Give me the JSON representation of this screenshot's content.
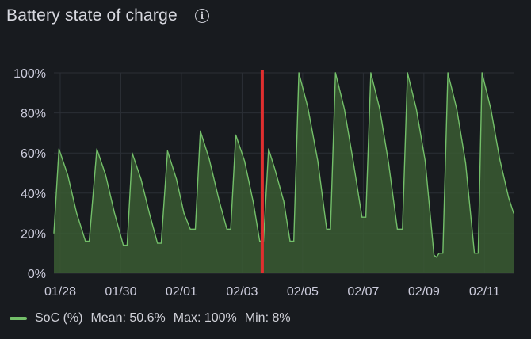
{
  "panel": {
    "title": "Battery state of charge",
    "info_icon": "info-icon"
  },
  "colors": {
    "background": "#181b1f",
    "series_line": "#73bf69",
    "series_fill": "#3a5a32",
    "grid": "#2b2f36",
    "marker": "#e02f2f"
  },
  "legend": {
    "series_name": "SoC (%)",
    "mean": "Mean: 50.6%",
    "max": "Max: 100%",
    "min": "Min: 8%"
  },
  "chart_data": {
    "type": "area",
    "title": "Battery state of charge",
    "xlabel": "",
    "ylabel": "",
    "ylim": [
      0,
      100
    ],
    "xlim": [
      "2024-01-27T19:00",
      "2024-02-11T23:00"
    ],
    "y_ticks": [
      "0%",
      "20%",
      "40%",
      "60%",
      "80%",
      "100%"
    ],
    "x_ticks": [
      {
        "label": "01/28",
        "t": "2024-01-28T00:00"
      },
      {
        "label": "01/30",
        "t": "2024-01-30T00:00"
      },
      {
        "label": "02/01",
        "t": "2024-02-01T00:00"
      },
      {
        "label": "02/03",
        "t": "2024-02-03T00:00"
      },
      {
        "label": "02/05",
        "t": "2024-02-05T00:00"
      },
      {
        "label": "02/07",
        "t": "2024-02-07T00:00"
      },
      {
        "label": "02/09",
        "t": "2024-02-09T00:00"
      },
      {
        "label": "02/11",
        "t": "2024-02-11T00:00"
      }
    ],
    "grid": true,
    "legend_position": "bottom-left",
    "vertical_marker": "2024-02-03T16:00",
    "series": [
      {
        "name": "SoC (%)",
        "points": [
          [
            "2024-01-27T19:00",
            20
          ],
          [
            "2024-01-27T23:00",
            62
          ],
          [
            "2024-01-28T06:00",
            49
          ],
          [
            "2024-01-28T13:00",
            30
          ],
          [
            "2024-01-28T20:00",
            16
          ],
          [
            "2024-01-28T23:00",
            16
          ],
          [
            "2024-01-29T05:00",
            62
          ],
          [
            "2024-01-29T12:00",
            49
          ],
          [
            "2024-01-29T19:00",
            30
          ],
          [
            "2024-01-30T02:00",
            14
          ],
          [
            "2024-01-30T05:00",
            14
          ],
          [
            "2024-01-30T09:00",
            60
          ],
          [
            "2024-01-30T16:00",
            47
          ],
          [
            "2024-01-30T23:00",
            29
          ],
          [
            "2024-01-31T05:00",
            15
          ],
          [
            "2024-01-31T08:00",
            15
          ],
          [
            "2024-01-31T13:00",
            61
          ],
          [
            "2024-01-31T20:00",
            47
          ],
          [
            "2024-02-01T02:00",
            30
          ],
          [
            "2024-02-01T07:00",
            22
          ],
          [
            "2024-02-01T11:00",
            22
          ],
          [
            "2024-02-01T15:00",
            71
          ],
          [
            "2024-02-01T22:00",
            57
          ],
          [
            "2024-02-02T06:00",
            36
          ],
          [
            "2024-02-02T12:00",
            22
          ],
          [
            "2024-02-02T15:00",
            22
          ],
          [
            "2024-02-02T19:00",
            69
          ],
          [
            "2024-02-03T02:00",
            56
          ],
          [
            "2024-02-03T09:00",
            35
          ],
          [
            "2024-02-03T14:00",
            16
          ],
          [
            "2024-02-03T17:00",
            16
          ],
          [
            "2024-02-03T21:00",
            62
          ],
          [
            "2024-02-04T02:00",
            52
          ],
          [
            "2024-02-04T09:00",
            36
          ],
          [
            "2024-02-04T11:00",
            28
          ],
          [
            "2024-02-04T14:00",
            16
          ],
          [
            "2024-02-04T17:00",
            16
          ],
          [
            "2024-02-04T21:00",
            100
          ],
          [
            "2024-02-05T04:00",
            83
          ],
          [
            "2024-02-05T12:00",
            56
          ],
          [
            "2024-02-05T19:00",
            22
          ],
          [
            "2024-02-05T22:00",
            22
          ],
          [
            "2024-02-06T02:00",
            100
          ],
          [
            "2024-02-06T09:00",
            82
          ],
          [
            "2024-02-06T16:00",
            56
          ],
          [
            "2024-02-06T23:00",
            28
          ],
          [
            "2024-02-07T02:00",
            28
          ],
          [
            "2024-02-07T06:00",
            100
          ],
          [
            "2024-02-07T13:00",
            82
          ],
          [
            "2024-02-07T20:00",
            55
          ],
          [
            "2024-02-08T03:00",
            22
          ],
          [
            "2024-02-08T07:00",
            22
          ],
          [
            "2024-02-08T11:00",
            100
          ],
          [
            "2024-02-08T18:00",
            82
          ],
          [
            "2024-02-09T01:00",
            56
          ],
          [
            "2024-02-09T08:00",
            9
          ],
          [
            "2024-02-09T10:00",
            8
          ],
          [
            "2024-02-09T12:00",
            10
          ],
          [
            "2024-02-09T15:00",
            10
          ],
          [
            "2024-02-09T19:00",
            100
          ],
          [
            "2024-02-10T02:00",
            82
          ],
          [
            "2024-02-10T09:00",
            55
          ],
          [
            "2024-02-10T16:00",
            10
          ],
          [
            "2024-02-10T19:00",
            10
          ],
          [
            "2024-02-10T22:00",
            100
          ],
          [
            "2024-02-11T05:00",
            82
          ],
          [
            "2024-02-11T12:00",
            57
          ],
          [
            "2024-02-11T19:00",
            38
          ],
          [
            "2024-02-11T23:00",
            30
          ]
        ]
      }
    ]
  }
}
